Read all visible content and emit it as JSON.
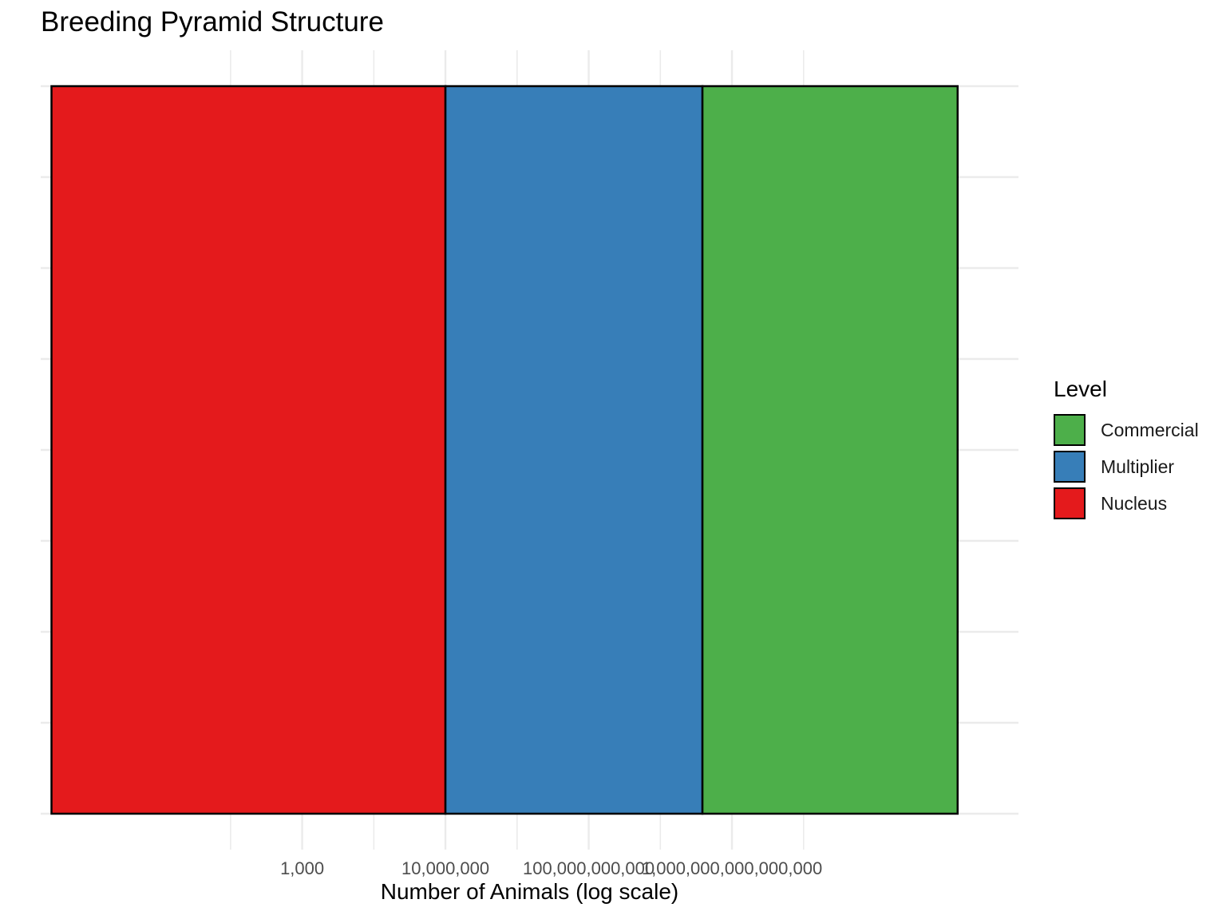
{
  "chart_data": {
    "type": "bar",
    "orientation": "horizontal",
    "stacked": true,
    "title": "Breeding Pyramid Structure",
    "xlabel": "Number of Animals (log scale)",
    "ylabel": "",
    "x_scale": "log10",
    "xlim": [
      5e-05,
      1e+23
    ],
    "x_ticks": [
      1000,
      10000000,
      100000000000,
      1000000000000000
    ],
    "x_tick_labels": [
      "1,000",
      "10,000,000",
      "100,000,000,000",
      "1,000,000,000,000,000"
    ],
    "grid": true,
    "legend": {
      "title": "Level",
      "placement": "right",
      "entries": [
        "Commercial",
        "Multiplier",
        "Nucleus"
      ]
    },
    "segments": [
      {
        "name": "Nucleus",
        "color": "#E41A1C",
        "x_start": 0.0001,
        "x_end": 10000000
      },
      {
        "name": "Multiplier",
        "color": "#377EB8",
        "x_start": 10000000,
        "x_end": 150000000000000
      },
      {
        "name": "Commercial",
        "color": "#4DAF4A",
        "x_start": 150000000000000,
        "x_end": 2000000000000000000000
      }
    ]
  }
}
